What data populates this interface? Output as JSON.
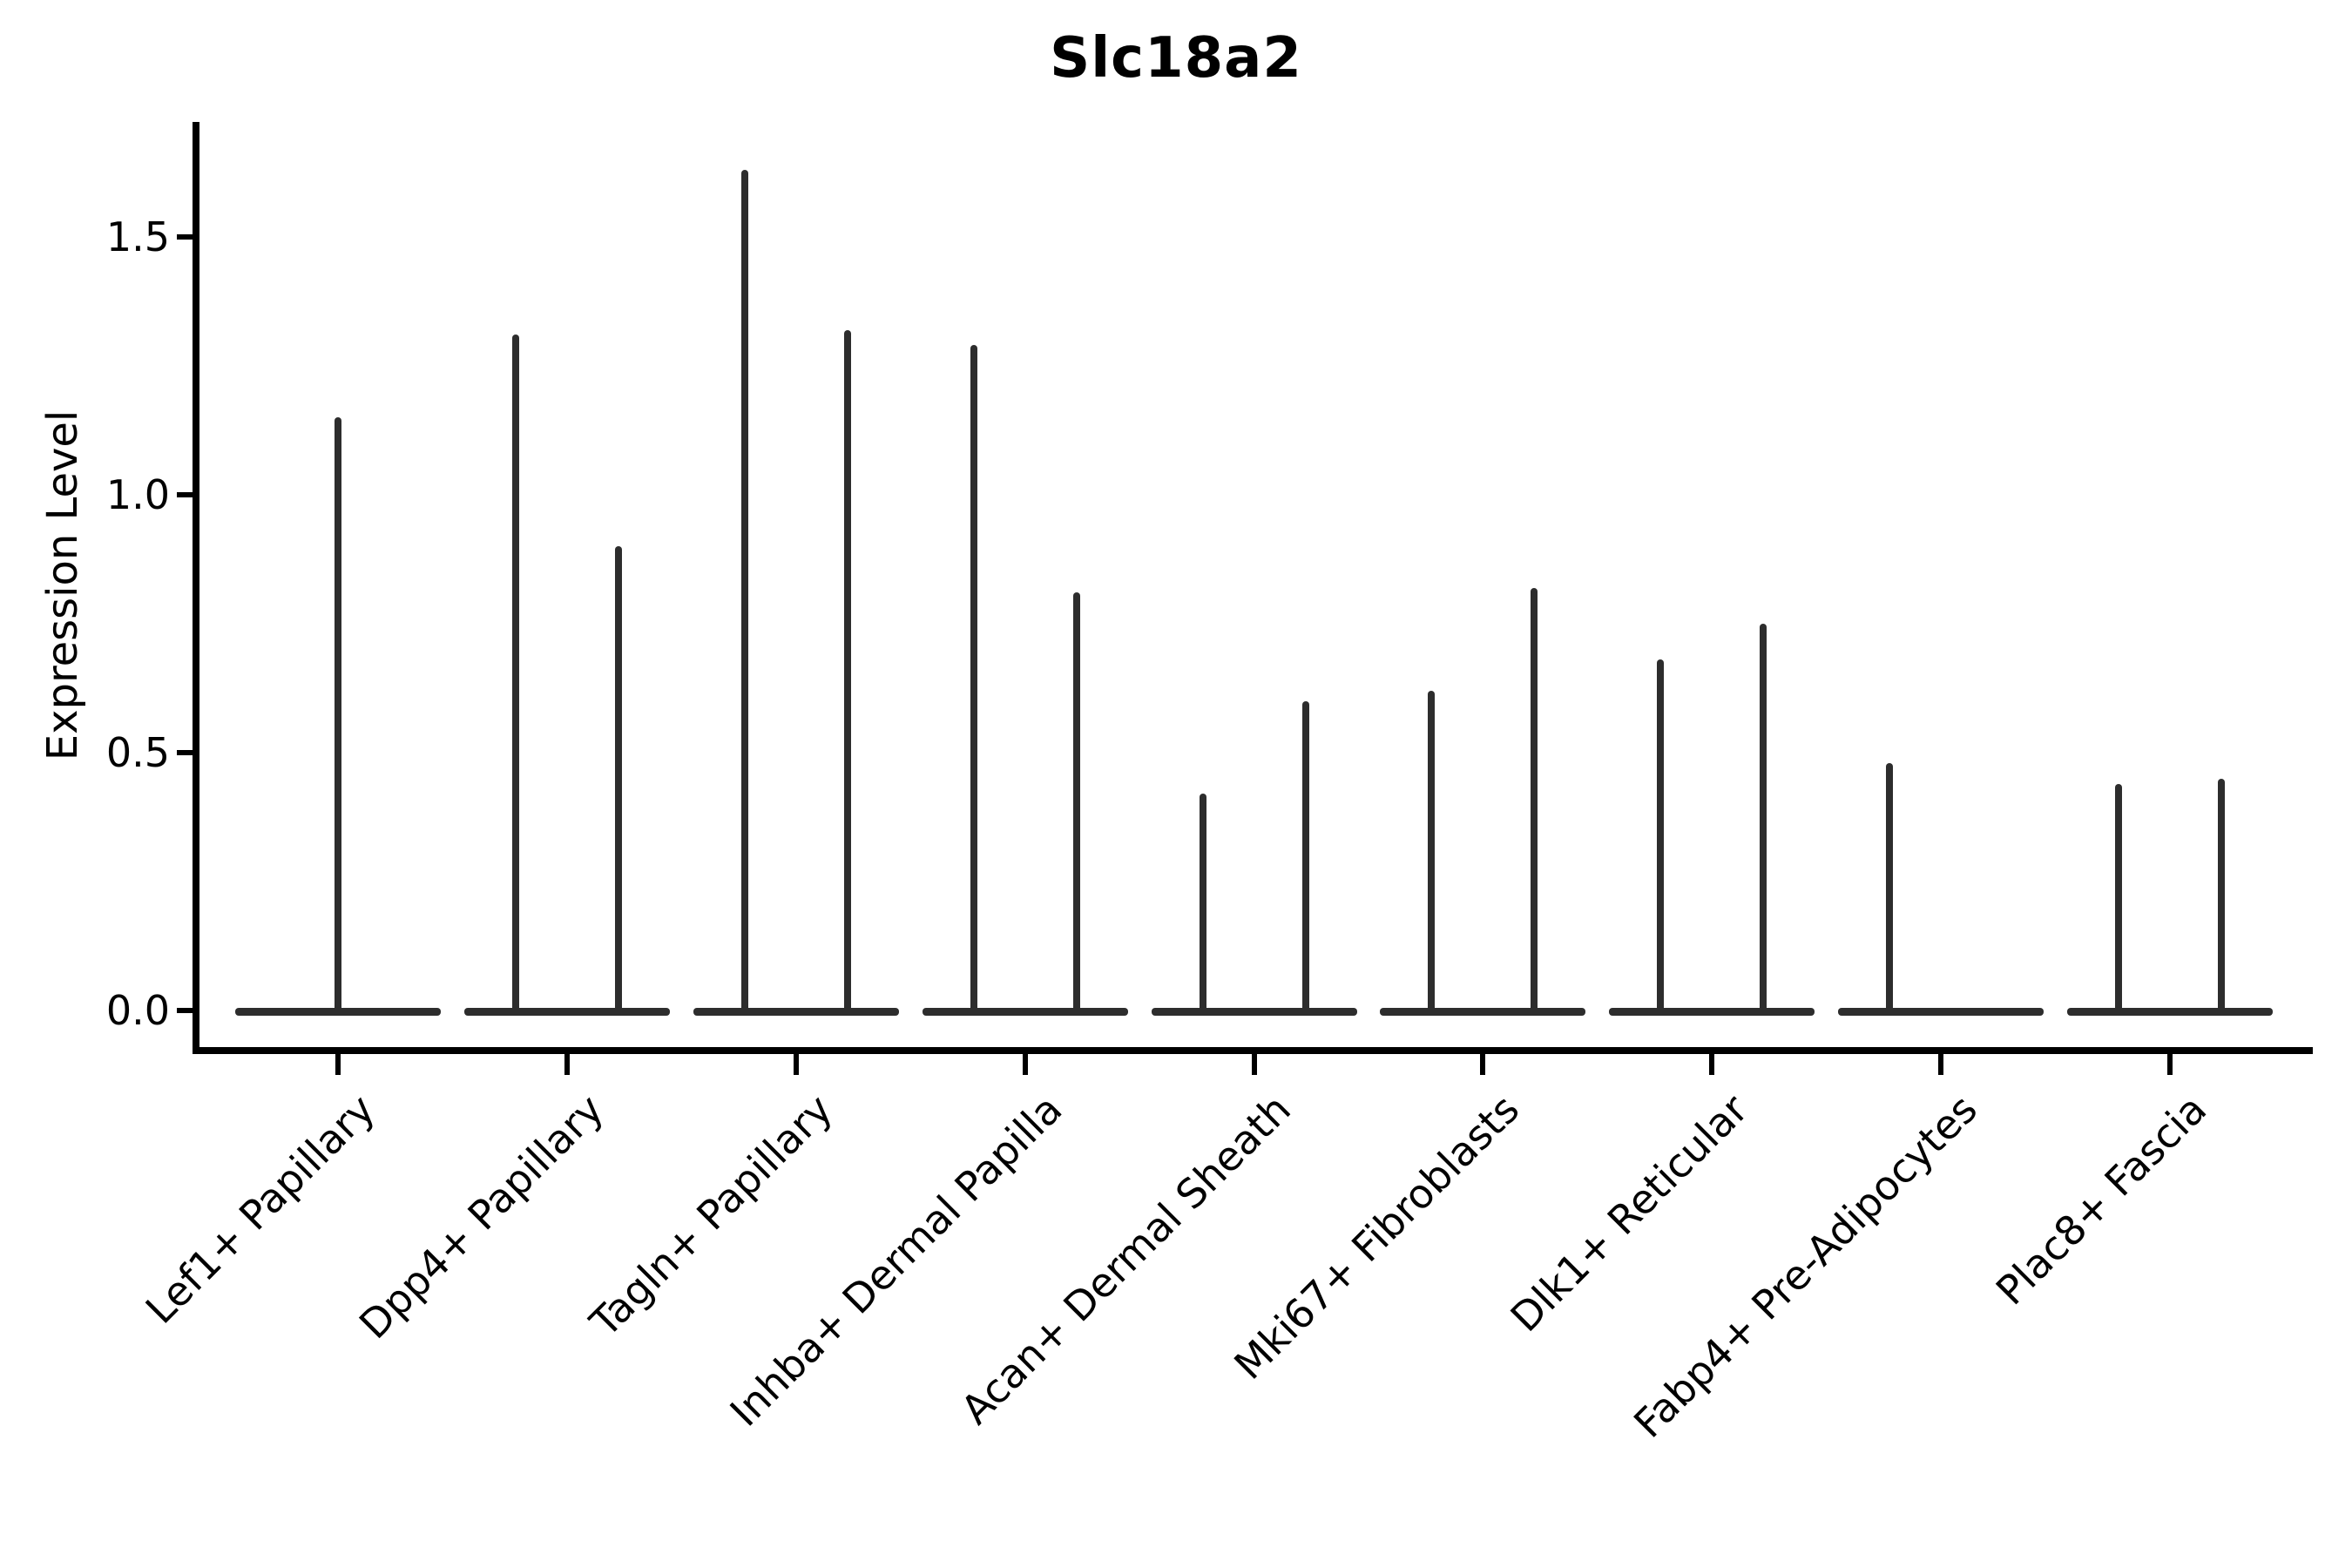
{
  "chart_data": {
    "type": "violin",
    "title": "Slc18a2",
    "ylabel": "Expression Level",
    "xlabel": "",
    "grid": false,
    "legend": null,
    "ylim": [
      -0.08,
      1.72
    ],
    "yticks": [
      {
        "label": "0.0",
        "value": 0.0
      },
      {
        "label": "0.5",
        "value": 0.5
      },
      {
        "label": "1.0",
        "value": 1.0
      },
      {
        "label": "1.5",
        "value": 1.5
      }
    ],
    "categories": [
      "Lef1+ Papillary",
      "Dpp4+ Papillary",
      "Tagln+ Papillary",
      "Inhba+ Dermal Papilla",
      "Acan+ Dermal Sheath",
      "Mki67+ Fibroblasts",
      "Dlk1+ Reticular",
      "Fabp4+ Pre-Adipocytes",
      "Plac8+ Fascia"
    ],
    "violins": [
      {
        "category": "Lef1+ Papillary",
        "spikes": [
          {
            "position": "center",
            "max_expression": 1.15
          }
        ]
      },
      {
        "category": "Dpp4+ Papillary",
        "spikes": [
          {
            "position": "left",
            "max_expression": 1.31
          },
          {
            "position": "right",
            "max_expression": 0.9
          }
        ]
      },
      {
        "category": "Tagln+ Papillary",
        "spikes": [
          {
            "position": "left",
            "max_expression": 1.63
          },
          {
            "position": "right",
            "max_expression": 1.32
          }
        ]
      },
      {
        "category": "Inhba+ Dermal Papilla",
        "spikes": [
          {
            "position": "left",
            "max_expression": 1.29
          },
          {
            "position": "right",
            "max_expression": 0.81
          }
        ]
      },
      {
        "category": "Acan+ Dermal Sheath",
        "spikes": [
          {
            "position": "left",
            "max_expression": 0.42
          },
          {
            "position": "right",
            "max_expression": 0.6
          }
        ]
      },
      {
        "category": "Mki67+ Fibroblasts",
        "spikes": [
          {
            "position": "left",
            "max_expression": 0.62
          },
          {
            "position": "right",
            "max_expression": 0.82
          }
        ]
      },
      {
        "category": "Dlk1+ Reticular",
        "spikes": [
          {
            "position": "left",
            "max_expression": 0.68
          },
          {
            "position": "right",
            "max_expression": 0.75
          }
        ]
      },
      {
        "category": "Fabp4+ Pre-Adipocytes",
        "spikes": [
          {
            "position": "left",
            "max_expression": 0.48
          }
        ]
      },
      {
        "category": "Plac8+ Fascia",
        "spikes": [
          {
            "position": "left",
            "max_expression": 0.44
          },
          {
            "position": "right",
            "max_expression": 0.45
          }
        ]
      }
    ],
    "baseline_value": 0.0,
    "colors": {
      "violin": "#2d2d2d",
      "axis": "#000000",
      "text": "#000000",
      "background": "#ffffff"
    }
  }
}
